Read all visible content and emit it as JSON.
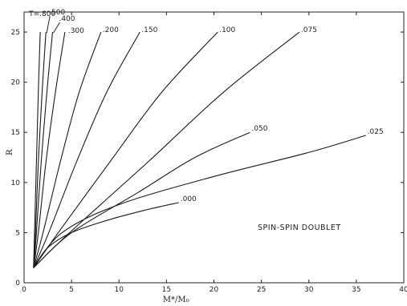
{
  "chart_data": {
    "type": "line",
    "title": "",
    "xlabel": "M*/M₀",
    "ylabel": "R",
    "xlim": [
      0,
      40
    ],
    "ylim": [
      0,
      27
    ],
    "x_ticks": [
      "0",
      "5",
      "10",
      "15",
      "20",
      "25",
      "30",
      "35",
      "40"
    ],
    "y_ticks": [
      "0",
      "5",
      "10",
      "15",
      "20",
      "25"
    ],
    "annotation": "SPIN-SPIN DOUBLET",
    "parameter_prefix": "T=",
    "grid": false,
    "series": [
      {
        "name": ".800",
        "x": [
          1.0,
          1.1,
          1.3,
          1.5,
          1.7
        ],
        "y": [
          1.5,
          5,
          12,
          19,
          25
        ]
      },
      {
        "name": ".500",
        "x": [
          1.0,
          1.2,
          1.5,
          1.9,
          2.3
        ],
        "y": [
          1.5,
          5,
          12,
          19,
          25
        ]
      },
      {
        "name": ".400",
        "x": [
          1.0,
          1.3,
          1.8,
          2.4,
          3.0
        ],
        "y": [
          1.5,
          5,
          12,
          19,
          25
        ]
      },
      {
        "name": ".300",
        "x": [
          1.0,
          1.5,
          2.3,
          3.3,
          4.3
        ],
        "y": [
          1.5,
          5,
          12,
          19,
          25
        ]
      },
      {
        "name": ".200",
        "x": [
          1.0,
          2.0,
          3.8,
          5.8,
          8.1
        ],
        "y": [
          1.5,
          5,
          12,
          19,
          25
        ]
      },
      {
        "name": ".150",
        "x": [
          1.0,
          2.6,
          5.5,
          8.7,
          12.2
        ],
        "y": [
          1.5,
          5,
          12,
          19,
          25
        ]
      },
      {
        "name": ".100",
        "x": [
          1.0,
          3.6,
          9.0,
          14.5,
          20.4
        ],
        "y": [
          1.5,
          5,
          12,
          19,
          25
        ]
      },
      {
        "name": ".075",
        "x": [
          1.0,
          4.8,
          13.0,
          21.0,
          29.0
        ],
        "y": [
          1.5,
          5,
          12,
          19,
          25
        ]
      },
      {
        "name": ".050",
        "x": [
          1.0,
          5.0,
          12.0,
          18.0,
          23.8
        ],
        "y": [
          1.5,
          5,
          9,
          12.5,
          15
        ]
      },
      {
        "name": ".025",
        "x": [
          1.0,
          4.0,
          10.0,
          20.0,
          30.0,
          36.0
        ],
        "y": [
          1.5,
          5,
          7.8,
          10.6,
          13,
          14.7
        ]
      },
      {
        "name": ".000",
        "x": [
          1.0,
          2.5,
          5.0,
          9.0,
          13.0,
          16.3
        ],
        "y": [
          1.5,
          3.5,
          5.0,
          6.3,
          7.3,
          8.0
        ]
      }
    ]
  }
}
